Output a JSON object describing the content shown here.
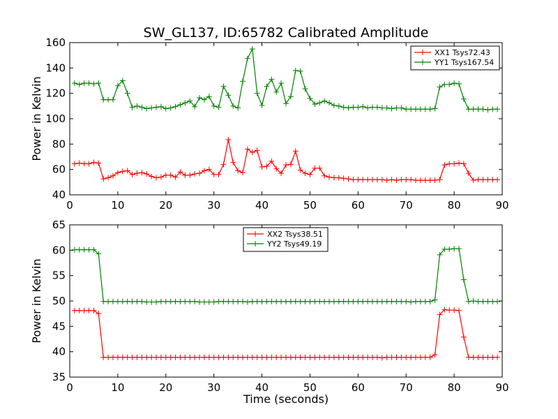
{
  "figure": {
    "title": "SW_GL137, ID:65782 Calibrated Amplitude"
  },
  "chart_data": [
    {
      "type": "line",
      "ylabel": "Power in Kelvin",
      "xlabel": "",
      "xlim": [
        0,
        90
      ],
      "ylim": [
        40,
        160
      ],
      "xticks": [
        0,
        10,
        20,
        30,
        40,
        50,
        60,
        70,
        80,
        90
      ],
      "yticks": [
        40,
        60,
        80,
        100,
        120,
        140,
        160
      ],
      "legend_position": "top-right",
      "grid": false,
      "x": [
        1,
        2,
        3,
        4,
        5,
        6,
        7,
        8,
        9,
        10,
        11,
        12,
        13,
        14,
        15,
        16,
        17,
        18,
        19,
        20,
        21,
        22,
        23,
        24,
        25,
        26,
        27,
        28,
        29,
        30,
        31,
        32,
        33,
        34,
        35,
        36,
        37,
        38,
        39,
        40,
        41,
        42,
        43,
        44,
        45,
        46,
        47,
        48,
        49,
        50,
        51,
        52,
        53,
        54,
        55,
        56,
        57,
        58,
        59,
        60,
        61,
        62,
        63,
        64,
        65,
        66,
        67,
        68,
        69,
        70,
        71,
        72,
        73,
        74,
        75,
        76,
        77,
        78,
        79,
        80,
        81,
        82,
        83,
        84,
        85,
        86,
        87,
        88,
        89
      ],
      "series": [
        {
          "name": "XX1 Tsys72.43",
          "color": "#ff0000",
          "values": [
            64.5,
            65,
            64.5,
            64.5,
            65.5,
            65,
            52.5,
            53.5,
            55,
            57.5,
            58.5,
            59,
            56,
            57,
            57.5,
            56.5,
            54.5,
            53.5,
            54,
            55.5,
            55.5,
            54,
            58,
            55.5,
            55.5,
            56.5,
            57,
            59,
            60,
            56,
            56,
            64,
            83.5,
            65.5,
            59,
            57.5,
            76,
            73.5,
            75,
            62,
            62.5,
            66.5,
            60.5,
            57,
            63.5,
            64,
            74.5,
            59.5,
            57,
            56,
            61,
            61,
            55,
            54,
            53.5,
            53.5,
            53,
            52.5,
            52,
            52,
            52,
            52,
            52,
            52,
            52,
            51.5,
            52,
            51.5,
            52,
            52,
            52,
            51.5,
            51.5,
            51.5,
            51.5,
            51.5,
            52,
            63.5,
            64.5,
            64.5,
            65,
            64.5,
            57,
            51.5,
            52,
            52,
            52,
            52,
            52
          ]
        },
        {
          "name": "YY1 Tsys167.54",
          "color": "#008000",
          "values": [
            128,
            127,
            128,
            128,
            127.5,
            128,
            115,
            115,
            115,
            126,
            130,
            120,
            109,
            110,
            109,
            108,
            108.5,
            109,
            109.5,
            108,
            108.5,
            109.5,
            111,
            112.5,
            114,
            109.5,
            116.5,
            115,
            117.5,
            110,
            109,
            125.5,
            118.5,
            110,
            108.5,
            129.5,
            147.5,
            155,
            120,
            110.5,
            125.5,
            131,
            121,
            128,
            112,
            117.5,
            138,
            137.5,
            123.5,
            116,
            111.5,
            112.5,
            114,
            112.5,
            110.5,
            110,
            109,
            108.5,
            109,
            109,
            109.5,
            108.5,
            109,
            109,
            108.5,
            108.5,
            108,
            108.5,
            108.5,
            107.5,
            107.5,
            107.5,
            107.5,
            107.5,
            107.5,
            108,
            125,
            127,
            127,
            128,
            127.5,
            115.5,
            107.5,
            107.5,
            107.5,
            107.5,
            107,
            107.5,
            107.5
          ]
        }
      ]
    },
    {
      "type": "line",
      "ylabel": "Power in Kelvin",
      "xlabel": "Time (seconds)",
      "xlim": [
        0,
        90
      ],
      "ylim": [
        35,
        65
      ],
      "xticks": [
        0,
        10,
        20,
        30,
        40,
        50,
        60,
        70,
        80,
        90
      ],
      "yticks": [
        35,
        40,
        45,
        50,
        55,
        60,
        65
      ],
      "legend_position": "top-center",
      "grid": false,
      "x": [
        1,
        2,
        3,
        4,
        5,
        6,
        7,
        8,
        9,
        10,
        11,
        12,
        13,
        14,
        15,
        16,
        17,
        18,
        19,
        20,
        21,
        22,
        23,
        24,
        25,
        26,
        27,
        28,
        29,
        30,
        31,
        32,
        33,
        34,
        35,
        36,
        37,
        38,
        39,
        40,
        41,
        42,
        43,
        44,
        45,
        46,
        47,
        48,
        49,
        50,
        51,
        52,
        53,
        54,
        55,
        56,
        57,
        58,
        59,
        60,
        61,
        62,
        63,
        64,
        65,
        66,
        67,
        68,
        69,
        70,
        71,
        72,
        73,
        74,
        75,
        76,
        77,
        78,
        79,
        80,
        81,
        82,
        83,
        84,
        85,
        86,
        87,
        88,
        89
      ],
      "series": [
        {
          "name": "XX2 Tsys38.51",
          "color": "#ff0000",
          "values": [
            48.1,
            48.1,
            48.1,
            48.1,
            48.1,
            47.5,
            38.9,
            38.9,
            38.9,
            38.9,
            38.9,
            38.9,
            38.9,
            38.9,
            38.9,
            38.9,
            38.9,
            38.9,
            38.9,
            38.9,
            38.9,
            38.9,
            38.9,
            38.9,
            38.9,
            38.9,
            38.9,
            38.9,
            38.9,
            38.9,
            38.9,
            38.9,
            38.9,
            38.9,
            38.9,
            38.9,
            38.9,
            38.9,
            38.9,
            38.9,
            38.9,
            38.9,
            38.9,
            38.9,
            38.9,
            38.9,
            38.9,
            38.9,
            38.9,
            38.9,
            38.9,
            38.9,
            38.9,
            38.9,
            38.9,
            38.9,
            38.9,
            38.9,
            38.9,
            38.9,
            38.9,
            38.9,
            38.9,
            38.9,
            38.8,
            38.9,
            38.9,
            38.9,
            38.9,
            38.9,
            38.9,
            38.9,
            38.9,
            38.9,
            38.9,
            39.4,
            47.3,
            48.3,
            48.2,
            48.2,
            48.1,
            42.9,
            38.9,
            38.9,
            38.9,
            38.9,
            38.9,
            38.9,
            38.9
          ]
        },
        {
          "name": "YY2 Tsys49.19",
          "color": "#008000",
          "values": [
            60.1,
            60.1,
            60.1,
            60.1,
            60.1,
            59.3,
            49.9,
            49.9,
            49.9,
            49.9,
            49.9,
            49.9,
            49.9,
            49.9,
            49.9,
            49.8,
            49.8,
            49.8,
            49.9,
            49.9,
            49.9,
            49.9,
            49.9,
            49.9,
            49.9,
            49.9,
            49.8,
            49.8,
            49.8,
            49.8,
            49.9,
            49.9,
            49.9,
            49.9,
            49.9,
            49.9,
            49.8,
            49.9,
            49.9,
            49.9,
            49.9,
            49.9,
            49.9,
            49.9,
            49.9,
            49.9,
            49.9,
            49.9,
            49.9,
            49.9,
            49.9,
            49.9,
            49.9,
            49.9,
            49.9,
            49.9,
            49.9,
            49.9,
            49.9,
            49.9,
            49.9,
            49.9,
            49.9,
            49.9,
            49.9,
            49.9,
            49.9,
            49.9,
            49.9,
            49.9,
            49.8,
            49.9,
            49.9,
            49.9,
            49.9,
            50.2,
            59.1,
            60.2,
            60.2,
            60.3,
            60.3,
            54.2,
            49.9,
            50,
            49.9,
            49.9,
            49.9,
            49.9,
            49.9
          ]
        }
      ]
    }
  ]
}
